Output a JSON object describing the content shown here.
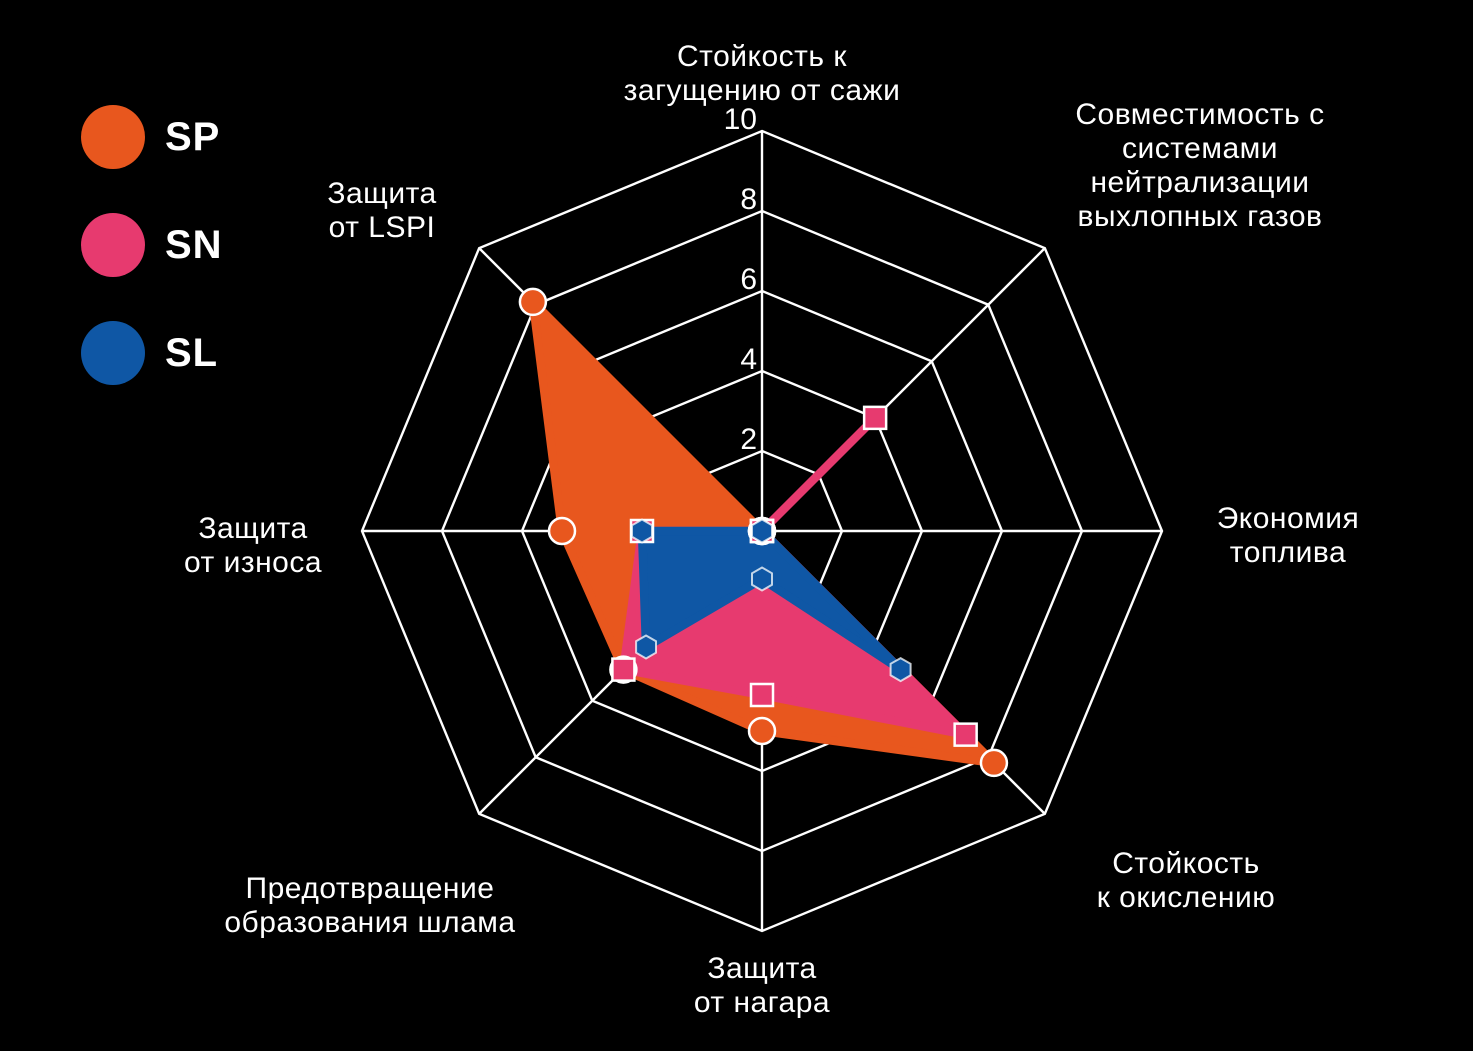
{
  "legend": {
    "items": [
      {
        "label": "SP",
        "color": "#E8571E"
      },
      {
        "label": "SN",
        "color": "#E73A6F"
      },
      {
        "label": "SL",
        "color": "#0F57A5"
      }
    ]
  },
  "chart_data": {
    "type": "radar",
    "axes_count": 8,
    "categories": [
      "Стойкость к загущению от сажи",
      "Совместимость с системами нейтрализации выхлопных газов",
      "Экономия топлива",
      "Стойкость к окислению",
      "Защита от нагара",
      "Предотвращение образования шлама",
      "Защита от износа",
      "Защита от LSPI"
    ],
    "category_lines": [
      [
        "Стойкость к",
        "загущению от сажи"
      ],
      [
        "Совместимость с",
        "системами",
        "нейтрализации",
        "выхлопных газов"
      ],
      [
        "Экономия",
        "топлива"
      ],
      [
        "Стойкость",
        "к окислению"
      ],
      [
        "Защита",
        "от нагара"
      ],
      [
        "Предотвращение",
        "образования шлама"
      ],
      [
        "Защита",
        "от износа"
      ],
      [
        "Защита",
        "от LSPI"
      ]
    ],
    "scale": {
      "min": 0,
      "max": 10,
      "step": 2,
      "ticks": [
        2,
        4,
        6,
        8,
        10
      ]
    },
    "series": [
      {
        "name": "SP",
        "color": "#E8571E",
        "marker": "circle",
        "values": [
          0,
          0,
          0,
          8.2,
          5.0,
          4.9,
          5.0,
          8.1
        ]
      },
      {
        "name": "SN",
        "color": "#E73A6F",
        "marker": "square",
        "values": [
          0,
          4.0,
          0,
          7.2,
          4.1,
          4.9,
          3.0,
          0
        ]
      },
      {
        "name": "SL",
        "color": "#0F57A5",
        "marker": "hexagon",
        "values": [
          0,
          0,
          0,
          4.9,
          1.2,
          4.1,
          3.0,
          0
        ]
      }
    ],
    "grid_color": "#FFFFFF",
    "background": "#000000",
    "legend_position": "top-left"
  }
}
